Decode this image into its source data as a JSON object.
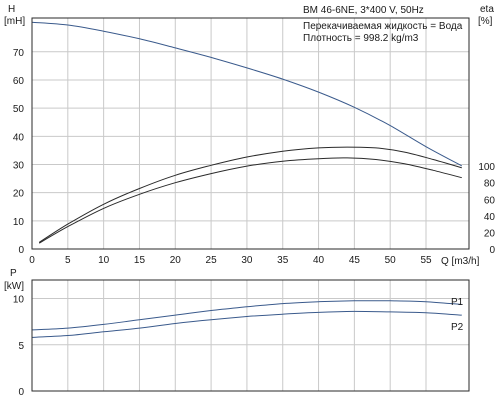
{
  "chart_data": [
    {
      "type": "line",
      "title": "BM 46-6NE, 3*400 V, 50Hz",
      "annotations": [
        "Перекачиваемая жидкость = Вода",
        "Плотность = 998.2 kg/m3"
      ],
      "xlabel": "Q [m3/h]",
      "ylabel_left": [
        "H",
        "[mH]"
      ],
      "ylabel_right": [
        "eta",
        "[%]"
      ],
      "xlim": [
        0,
        61
      ],
      "x_ticks": [
        0,
        5,
        10,
        15,
        20,
        25,
        30,
        35,
        40,
        45,
        50,
        55
      ],
      "ylim_left": [
        0,
        82
      ],
      "y_ticks_left": [
        0,
        10,
        20,
        30,
        40,
        50,
        60,
        70
      ],
      "y_ticks_right": [
        0,
        20,
        40,
        60,
        80,
        100
      ],
      "right_axis_map": {
        "eta_per_left_unit": 3.4
      },
      "grid": true,
      "series": [
        {
          "axis": "left",
          "color": "#3a5a8c",
          "x": [
            0,
            5,
            10,
            15,
            20,
            25,
            30,
            35,
            40,
            45,
            50,
            55,
            60
          ],
          "values": [
            80.5,
            79.5,
            77.3,
            74.6,
            71.4,
            68.0,
            64.3,
            60.3,
            55.7,
            50.3,
            43.8,
            36.3,
            29.5
          ]
        },
        {
          "axis": "right",
          "color": "#2a2a2a",
          "x": [
            1,
            5,
            10,
            15,
            20,
            25,
            30,
            35,
            40,
            44,
            48,
            52,
            56,
            60
          ],
          "values": [
            8,
            30,
            54,
            73,
            89,
            101,
            111,
            118,
            122,
            123,
            122,
            117,
            108,
            98
          ]
        },
        {
          "axis": "right",
          "color": "#2a2a2a",
          "x": [
            1,
            5,
            10,
            15,
            20,
            25,
            30,
            35,
            40,
            44,
            48,
            52,
            56,
            60
          ],
          "values": [
            7,
            27,
            49,
            66,
            80,
            91,
            100,
            106,
            109,
            110,
            108,
            103,
            95,
            86
          ]
        }
      ]
    },
    {
      "type": "line",
      "xlabel": "",
      "ylabel": [
        "P",
        "[kW]"
      ],
      "xlim": [
        0,
        61
      ],
      "x_ticks": [
        0,
        5,
        10,
        15,
        20,
        25,
        30,
        35,
        40,
        45,
        50,
        55
      ],
      "ylim": [
        0,
        12
      ],
      "y_ticks": [
        0,
        5,
        10
      ],
      "grid": true,
      "series": [
        {
          "name": "P1",
          "color": "#3a5a8c",
          "x": [
            0,
            5,
            10,
            15,
            20,
            25,
            30,
            35,
            40,
            45,
            50,
            55,
            60
          ],
          "values": [
            6.6,
            6.8,
            7.2,
            7.7,
            8.2,
            8.7,
            9.1,
            9.45,
            9.65,
            9.75,
            9.75,
            9.65,
            9.35
          ]
        },
        {
          "name": "P2",
          "color": "#3a5a8c",
          "x": [
            0,
            5,
            10,
            15,
            20,
            25,
            30,
            35,
            40,
            45,
            50,
            55,
            60
          ],
          "values": [
            5.8,
            6.0,
            6.4,
            6.8,
            7.3,
            7.7,
            8.05,
            8.3,
            8.5,
            8.6,
            8.55,
            8.45,
            8.2
          ]
        }
      ]
    }
  ]
}
